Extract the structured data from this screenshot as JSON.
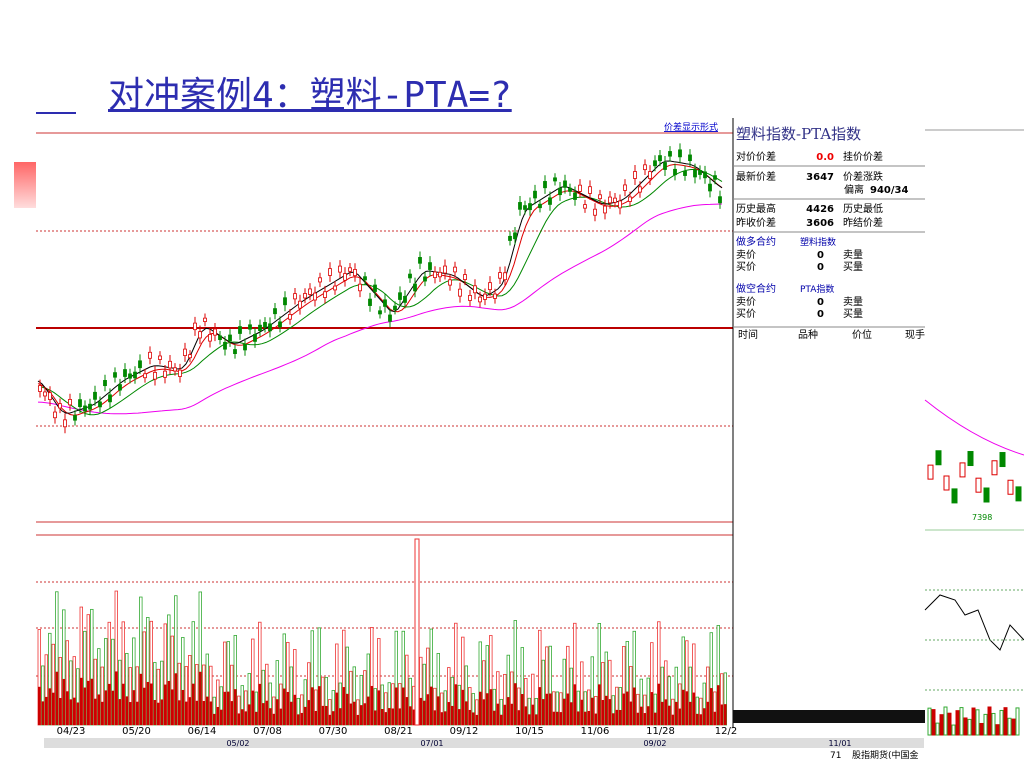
{
  "header": {
    "title": "对冲案例4：塑料-PTA=?"
  },
  "chart": {
    "mode_label": "价差显示形式",
    "dates": [
      "04/23",
      "05/20",
      "06/14",
      "07/08",
      "07/30",
      "08/21",
      "09/12",
      "10/15",
      "11/06",
      "11/28",
      "12/2"
    ],
    "periods": [
      "05/02",
      "07/01",
      "09/02",
      "11/01"
    ]
  },
  "panel": {
    "title": "塑料指数-PTA指数",
    "rows": [
      [
        "对价价差",
        "0.0",
        "挂价价差"
      ],
      [
        "最新价差",
        "3647",
        "价差涨跌"
      ],
      [
        "偏离",
        "940/34"
      ],
      [
        "历史最高",
        "4426",
        "历史最低"
      ],
      [
        "昨收价差",
        "3606",
        "昨结价差"
      ]
    ],
    "long": [
      "做多合约",
      "塑料指数"
    ],
    "long_rows": [
      [
        "卖价",
        "0",
        "卖量"
      ],
      [
        "买价",
        "0",
        "买量"
      ]
    ],
    "short": [
      "做空合约",
      "PTA指数"
    ],
    "short_rows": [
      [
        "卖价",
        "0",
        "卖量"
      ],
      [
        "买价",
        "0",
        "买量"
      ]
    ],
    "columns": [
      "时间",
      "品种",
      "价位",
      "现手"
    ],
    "footer": [
      "71",
      "股指期货(中国金"
    ]
  },
  "side_chart": {
    "label": "7398"
  }
}
